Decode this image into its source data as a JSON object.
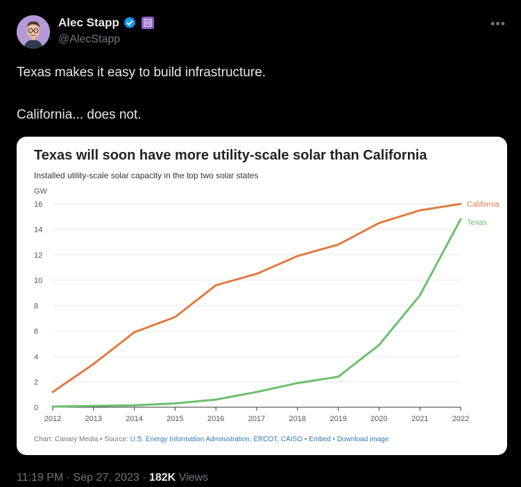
{
  "user": {
    "display_name": "Alec Stapp",
    "handle": "@AlecStapp"
  },
  "tweet": {
    "line1": "Texas makes it easy to build infrastructure.",
    "line2": "California... does not.",
    "time": "11:19 PM",
    "date": "Sep 27, 2023",
    "views_count": "182K",
    "views_label": "Views"
  },
  "colors": {
    "california": "#e07a3f",
    "texas": "#6cbf6c",
    "link": "#2c7bb6",
    "verified": "#1d9bf0"
  },
  "chart_data": {
    "type": "line",
    "title": "Texas will soon have more utility-scale solar than California",
    "subtitle": "Installed utility-scale solar capacity in the top two solar states",
    "ylabel": "GW",
    "xlabel": "",
    "x": [
      "2012",
      "2013",
      "2014",
      "2015",
      "2016",
      "2017",
      "2018",
      "2019",
      "2020",
      "2021",
      "2022"
    ],
    "yticks": [
      "0",
      "2",
      "4",
      "6",
      "8",
      "10",
      "12",
      "14",
      "16"
    ],
    "ylim": [
      0,
      16
    ],
    "grid": true,
    "series": [
      {
        "name": "California",
        "color": "#e07a3f",
        "values": [
          1.2,
          3.4,
          5.9,
          7.1,
          9.6,
          10.5,
          11.9,
          12.8,
          14.5,
          15.5,
          16.0
        ]
      },
      {
        "name": "Texas",
        "color": "#6cbf6c",
        "values": [
          0.05,
          0.1,
          0.15,
          0.3,
          0.6,
          1.2,
          1.9,
          2.4,
          4.9,
          8.8,
          14.8
        ]
      }
    ],
    "footer": {
      "prefix": "Chart: Canary Media • Source: ",
      "source_link": "U.S. Energy Information Administration, ERCOT, CAISO",
      "sep1": " • ",
      "embed": "Embed",
      "sep2": " • ",
      "download": "Download image"
    }
  }
}
